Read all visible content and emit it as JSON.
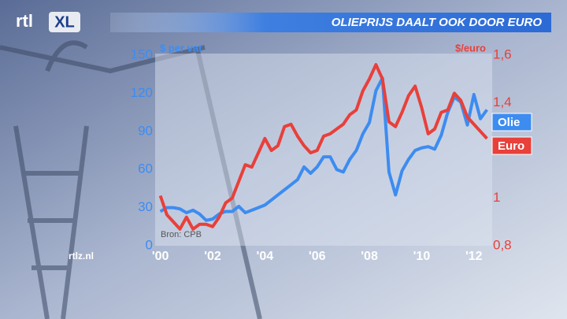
{
  "chart_data": {
    "type": "line",
    "title": "OLIEPRIJS DAALT OOK DOOR EURO",
    "logo": [
      "rtl",
      "XL"
    ],
    "ylabel": "$ per vat",
    "y2label": "$/euro",
    "source": "Bron: CPB",
    "website": "rtlz.nl",
    "x": [
      2000,
      2000.25,
      2000.5,
      2000.75,
      2001,
      2001.25,
      2001.5,
      2001.75,
      2002,
      2002.25,
      2002.5,
      2002.75,
      2003,
      2003.25,
      2003.5,
      2003.75,
      2004,
      2004.25,
      2004.5,
      2004.75,
      2005,
      2005.25,
      2005.5,
      2005.75,
      2006,
      2006.25,
      2006.5,
      2006.75,
      2007,
      2007.25,
      2007.5,
      2007.75,
      2008,
      2008.25,
      2008.5,
      2008.75,
      2009,
      2009.25,
      2009.5,
      2009.75,
      2010,
      2010.25,
      2010.5,
      2010.75,
      2011,
      2011.25,
      2011.5,
      2011.75,
      2012,
      2012.25,
      2012.5
    ],
    "series": [
      {
        "name": "Olie",
        "color": "#3d8cf0",
        "values": [
          27,
          30,
          30,
          29,
          26,
          28,
          25,
          20,
          21,
          25,
          27,
          27,
          31,
          26,
          28,
          30,
          32,
          36,
          40,
          44,
          48,
          52,
          62,
          57,
          62,
          70,
          70,
          60,
          58,
          68,
          75,
          88,
          97,
          122,
          132,
          58,
          40,
          59,
          68,
          75,
          77,
          78,
          76,
          87,
          105,
          117,
          113,
          95,
          119,
          100,
          107
        ]
      },
      {
        "name": "Euro",
        "color": "#e8403a",
        "axis": "y2",
        "values": [
          1.01,
          0.93,
          0.9,
          0.87,
          0.92,
          0.87,
          0.89,
          0.89,
          0.88,
          0.92,
          0.98,
          1.0,
          1.07,
          1.14,
          1.13,
          1.19,
          1.25,
          1.2,
          1.22,
          1.3,
          1.31,
          1.26,
          1.22,
          1.19,
          1.2,
          1.26,
          1.27,
          1.29,
          1.31,
          1.35,
          1.37,
          1.45,
          1.5,
          1.56,
          1.5,
          1.32,
          1.3,
          1.36,
          1.43,
          1.47,
          1.38,
          1.27,
          1.29,
          1.36,
          1.37,
          1.44,
          1.41,
          1.34,
          1.31,
          1.28,
          1.25
        ]
      }
    ],
    "xlim": [
      1999.8,
      2012.7
    ],
    "xticks": [
      {
        "value": 2000,
        "label": "'00"
      },
      {
        "value": 2002,
        "label": "'02"
      },
      {
        "value": 2004,
        "label": "'04"
      },
      {
        "value": 2006,
        "label": "'06"
      },
      {
        "value": 2008,
        "label": "'08"
      },
      {
        "value": 2010,
        "label": "'10"
      },
      {
        "value": 2012,
        "label": "'12"
      }
    ],
    "ylim": [
      0,
      150
    ],
    "yticks": [
      0,
      30,
      60,
      90,
      120,
      150
    ],
    "y2lim": [
      0.8,
      1.6
    ],
    "y2ticks": [
      {
        "value": 0.8,
        "label": "0,8"
      },
      1,
      {
        "value": 1.4,
        "label": "1,4"
      },
      {
        "value": 1.6,
        "label": "1,6"
      }
    ]
  }
}
